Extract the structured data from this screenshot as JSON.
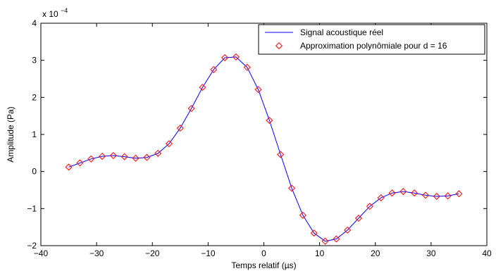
{
  "chart_data": {
    "type": "line",
    "xlabel": "Temps relatif (µs)",
    "ylabel": "Amplitude (Pa)",
    "xlim": [
      -40,
      40
    ],
    "ylim": [
      -2,
      4
    ],
    "y_exponent_label": "x 10",
    "y_exponent_value": "−4",
    "x_ticks": [
      -40,
      -30,
      -20,
      -10,
      0,
      10,
      20,
      30,
      40
    ],
    "y_ticks": [
      -2,
      -1,
      0,
      1,
      2,
      3,
      4
    ],
    "x_tick_labels": [
      "−40",
      "−30",
      "−20",
      "−10",
      "0",
      "10",
      "20",
      "30",
      "40"
    ],
    "y_tick_labels": [
      "−2",
      "−1",
      "0",
      "1",
      "2",
      "3",
      "4"
    ],
    "grid": false,
    "legend_position": "top-right",
    "series": [
      {
        "name": "Signal acoustique réel",
        "style": "line",
        "color": "#0000ff",
        "x": [
          -35,
          -33,
          -31,
          -29,
          -27,
          -25,
          -23,
          -21,
          -19,
          -17,
          -15,
          -13,
          -11,
          -9,
          -7,
          -5,
          -3,
          -1,
          1,
          3,
          5,
          7,
          9,
          11,
          13,
          15,
          17,
          19,
          21,
          23,
          25,
          27,
          29,
          31,
          33,
          35
        ],
        "y": [
          0.12,
          0.23,
          0.34,
          0.41,
          0.43,
          0.4,
          0.36,
          0.38,
          0.49,
          0.75,
          1.17,
          1.7,
          2.27,
          2.75,
          3.07,
          3.09,
          2.81,
          2.21,
          1.38,
          0.46,
          -0.45,
          -1.18,
          -1.66,
          -1.88,
          -1.82,
          -1.58,
          -1.26,
          -0.94,
          -0.71,
          -0.58,
          -0.54,
          -0.58,
          -0.64,
          -0.67,
          -0.66,
          -0.6
        ]
      },
      {
        "name": "Approximation polynômiale pour d = 16",
        "style": "marker",
        "marker": "diamond",
        "color": "#ff0000",
        "x": [
          -35,
          -33,
          -31,
          -29,
          -27,
          -25,
          -23,
          -21,
          -19,
          -17,
          -15,
          -13,
          -11,
          -9,
          -7,
          -5,
          -3,
          -1,
          1,
          3,
          5,
          7,
          9,
          11,
          13,
          15,
          17,
          19,
          21,
          23,
          25,
          27,
          29,
          31,
          33,
          35
        ],
        "y": [
          0.12,
          0.23,
          0.34,
          0.41,
          0.43,
          0.4,
          0.36,
          0.38,
          0.49,
          0.75,
          1.17,
          1.7,
          2.27,
          2.75,
          3.07,
          3.09,
          2.81,
          2.21,
          1.38,
          0.46,
          -0.45,
          -1.18,
          -1.66,
          -1.88,
          -1.82,
          -1.58,
          -1.26,
          -0.94,
          -0.71,
          -0.58,
          -0.54,
          -0.58,
          -0.64,
          -0.67,
          -0.66,
          -0.6
        ]
      }
    ]
  }
}
